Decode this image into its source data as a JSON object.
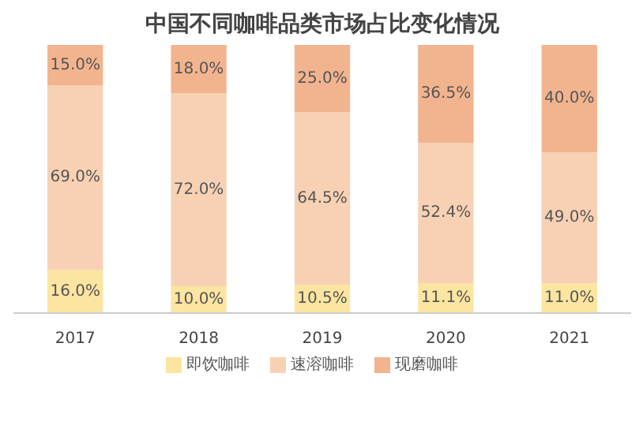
{
  "chart_data": {
    "type": "bar",
    "title": "中国不同咖啡品类市场占比变化情况",
    "categories": [
      "2017",
      "2018",
      "2019",
      "2020",
      "2021"
    ],
    "stacked": true,
    "legend": "bottom",
    "series": [
      {
        "name": "即饮咖啡",
        "color": "#fce5a0",
        "values": [
          16.0,
          10.0,
          10.5,
          11.1,
          11.0
        ],
        "value_labels": [
          "16.0%",
          "10.0%",
          "10.5%",
          "11.1%",
          "11.0%"
        ]
      },
      {
        "name": "速溶咖啡",
        "color": "#f8d1b4",
        "values": [
          69.0,
          72.0,
          64.5,
          52.4,
          49.0
        ],
        "value_labels": [
          "69.0%",
          "72.0%",
          "64.5%",
          "52.4%",
          "49.0%"
        ]
      },
      {
        "name": "现磨咖啡",
        "color": "#f2b48e",
        "values": [
          15.0,
          18.0,
          25.0,
          36.5,
          40.0
        ],
        "value_labels": [
          "15.0%",
          "18.0%",
          "25.0%",
          "36.5%",
          "40.0%"
        ]
      }
    ]
  }
}
